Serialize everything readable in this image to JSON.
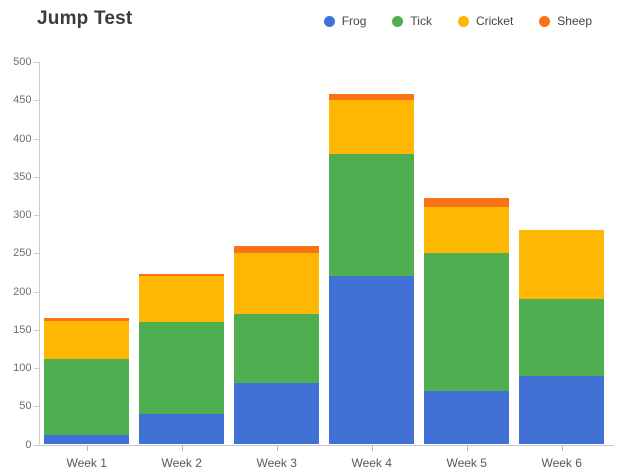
{
  "title": "Jump Test",
  "chart_data": {
    "type": "bar",
    "stacked": true,
    "title": "Jump Test",
    "categories": [
      "Week 1",
      "Week 2",
      "Week 3",
      "Week 4",
      "Week 5",
      "Week 6"
    ],
    "series": [
      {
        "name": "Frog",
        "color": "#4271D6",
        "values": [
          12,
          40,
          80,
          220,
          70,
          90
        ]
      },
      {
        "name": "Tick",
        "color": "#4FAE50",
        "values": [
          100,
          120,
          90,
          160,
          180,
          100
        ]
      },
      {
        "name": "Cricket",
        "color": "#FEB804",
        "values": [
          50,
          60,
          80,
          70,
          60,
          90
        ]
      },
      {
        "name": "Sheep",
        "color": "#F97316",
        "values": [
          3,
          3,
          10,
          8,
          12,
          0
        ]
      }
    ],
    "totals": [
      165,
      223,
      260,
      458,
      322,
      280
    ],
    "xlabel": "",
    "ylabel": "",
    "ylim": [
      0,
      500
    ],
    "ytick_step": 50,
    "grid": false,
    "legend_position": "top-right"
  }
}
